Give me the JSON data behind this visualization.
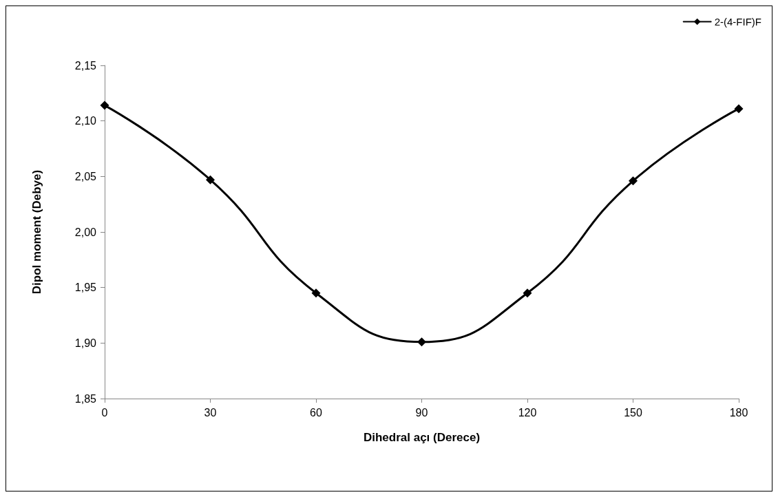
{
  "chart_data": {
    "type": "line",
    "xlabel": "Dihedral açı (Derece)",
    "ylabel": "Dipol moment (Debye)",
    "x": [
      0,
      30,
      60,
      90,
      120,
      150,
      180
    ],
    "series": [
      {
        "name": "2-(4-FIF)F",
        "color": "#000000",
        "values": [
          2.114,
          2.047,
          1.945,
          1.901,
          1.945,
          2.046,
          2.111
        ]
      }
    ],
    "xlim": [
      0,
      180
    ],
    "xticks": [
      0,
      30,
      60,
      90,
      120,
      150,
      180
    ],
    "ylim": [
      1.85,
      2.15
    ],
    "yticks": [
      {
        "value": 1.85,
        "label": "1,85"
      },
      {
        "value": 1.9,
        "label": "1,90"
      },
      {
        "value": 1.95,
        "label": "1,95"
      },
      {
        "value": 2.0,
        "label": "2,00"
      },
      {
        "value": 2.05,
        "label": "2,05"
      },
      {
        "value": 2.1,
        "label": "2,10"
      },
      {
        "value": 2.15,
        "label": "2,15"
      }
    ],
    "grid": false,
    "legend": "top right",
    "marker": "diamond",
    "line_style": "solid"
  }
}
